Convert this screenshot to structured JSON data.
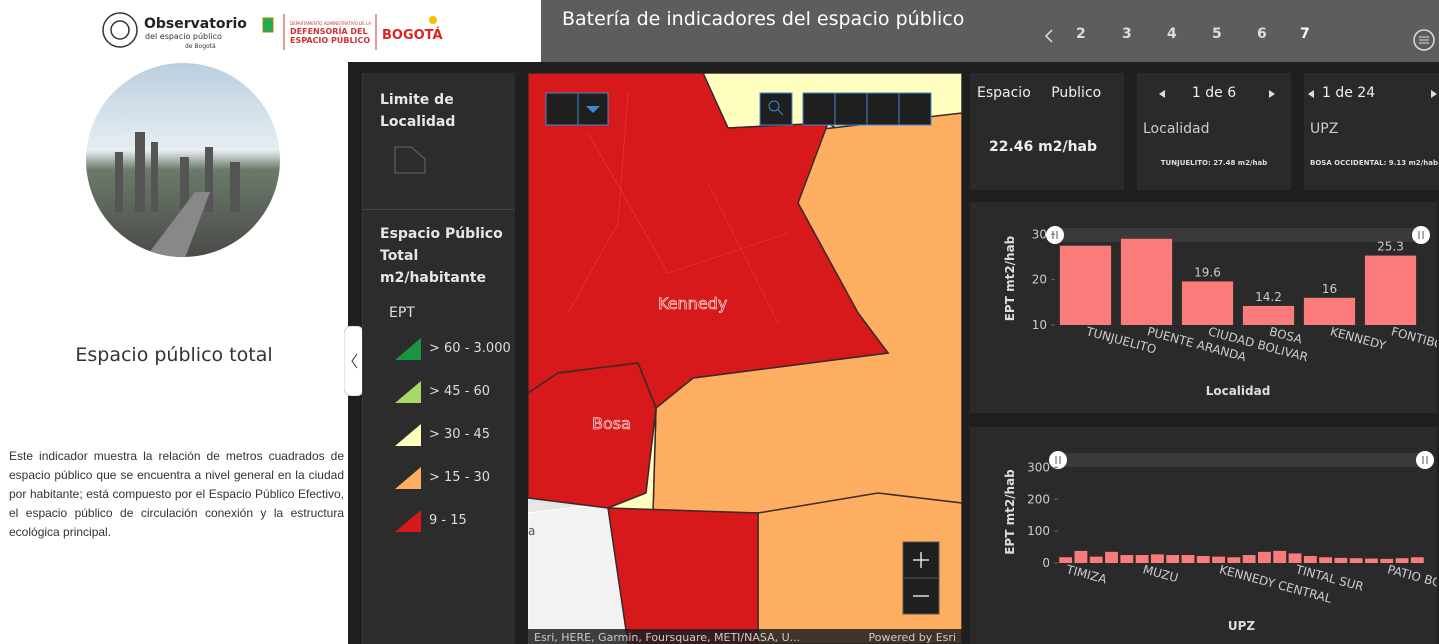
{
  "header": {
    "logo": {
      "name": "Observatorio",
      "sub1": "del espacio público",
      "sub2": "de Bogotá"
    },
    "dadep": [
      "DEPARTAMENTO ADMINISTRATIVO DE LA",
      "DEFENSORÍA DEL",
      "ESPACIO PÚBLICO"
    ],
    "bogota": "BOGOTÁ",
    "title": "Batería de indicadores del espacio público",
    "pages": [
      "2",
      "3",
      "4",
      "5",
      "6",
      "7"
    ]
  },
  "left": {
    "title": "Espacio público total",
    "description": "Este indicador muestra la relación de metros cuadrados de espacio público que se encuentra a nivel general en la ciudad por habitante; está compuesto por el Espacio Público Efectivo, el espacio público de circulación conexión y la estructura ecológica principal."
  },
  "legend": {
    "boundary": "Limite de Localidad",
    "layer": "Espacio Público Total m2/habitante",
    "field": "EPT",
    "items": [
      {
        "label": "> 60 - 3.000",
        "color": "#1a9641"
      },
      {
        "label": "> 45 - 60",
        "color": "#a6d96a"
      },
      {
        "label": "> 30 - 45",
        "color": "#ffffbf"
      },
      {
        "label": "> 15 - 30",
        "color": "#fdae61"
      },
      {
        "label": "9 - 15",
        "color": "#d7191c"
      }
    ]
  },
  "map": {
    "labels": [
      "Kennedy",
      "Bosa",
      "a"
    ],
    "attribution": "Esri, HERE, Garmin, Foursquare, METI/NASA, U...",
    "powered": "Powered by Esri"
  },
  "cards": [
    {
      "title": "Espacio Publico",
      "value": "22.46 m2/hab"
    },
    {
      "pager": "1 de 6",
      "title": "Localidad",
      "detail": "TUNJUELITO: 27.48 m2/hab"
    },
    {
      "pager": "1 de 24",
      "title": "UPZ",
      "detail": "BOSA OCCIDENTAL: 9.13 m2/hab"
    }
  ],
  "chart_data": [
    {
      "type": "bar",
      "xlabel": "Localidad",
      "ylabel": "EPT mt2/hab",
      "categories": [
        "TUNJUELITO",
        "PUENTE ARANDA",
        "CIUDAD BOLIVAR",
        "BOSA",
        "KENNEDY",
        "FONTIBON"
      ],
      "values": [
        27.48,
        29,
        19.6,
        14.2,
        16,
        25.3
      ],
      "value_labels": [
        null,
        null,
        "19.6",
        "14.2",
        "16",
        "25.3"
      ],
      "color": "#fb7b7b",
      "ylim": [
        10,
        30.5
      ],
      "yticks": [
        10,
        20,
        30
      ]
    },
    {
      "type": "bar",
      "xlabel": "UPZ",
      "ylabel": "EPT mt2/hab",
      "categories": [
        "TIMIZA",
        null,
        null,
        null,
        null,
        "MUZU",
        null,
        null,
        null,
        null,
        "KENNEDY CENTRAL",
        null,
        null,
        null,
        null,
        "TINTAL SUR",
        null,
        null,
        null,
        null,
        null,
        "PATIO BONITO",
        null,
        null
      ],
      "values": [
        18,
        38,
        20,
        35,
        25,
        25,
        27,
        25,
        25,
        22,
        20,
        18,
        25,
        35,
        38,
        30,
        22,
        18,
        16,
        15,
        14,
        13,
        15,
        18
      ],
      "color": "#fb7b7b",
      "ylim": [
        0,
        320
      ],
      "yticks": [
        0,
        100,
        200,
        300
      ]
    }
  ]
}
